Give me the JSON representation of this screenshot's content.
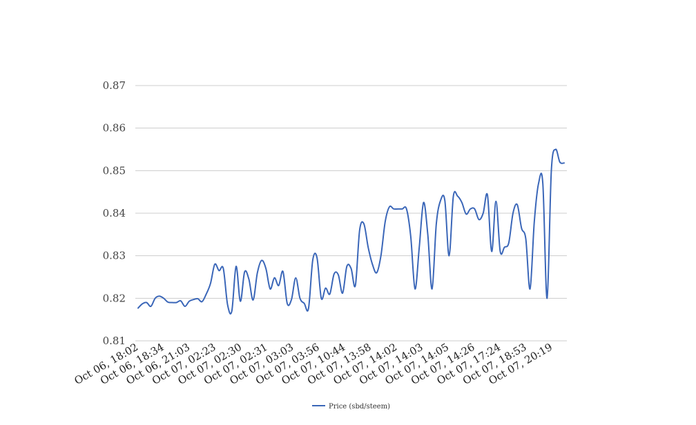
{
  "chart_data": {
    "type": "line",
    "title": "",
    "xlabel": "",
    "ylabel": "",
    "ylim": [
      0.81,
      0.87
    ],
    "yticks": [
      0.81,
      0.82,
      0.83,
      0.84,
      0.85,
      0.86,
      0.87
    ],
    "ytick_labels": [
      "0.81",
      "0.82",
      "0.83",
      "0.84",
      "0.85",
      "0.86",
      "0.87"
    ],
    "x_tick_labels": [
      "Oct 06, 18:02",
      "Oct 06, 18:34",
      "Oct 06, 21:03",
      "Oct 07, 02:23",
      "Oct 07, 02:30",
      "Oct 07, 02:31",
      "Oct 07, 03:03",
      "Oct 07, 03:56",
      "Oct 07, 10:44",
      "Oct 07, 13:58",
      "Oct 07, 14:02",
      "Oct 07, 14:03",
      "Oct 07, 14:05",
      "Oct 07, 14:26",
      "Oct 07, 17:24",
      "Oct 07, 18:53",
      "Oct 07, 20:19"
    ],
    "grid": true,
    "legend_position": "bottom",
    "series": [
      {
        "name": "Price (sbd/steem)",
        "color": "#3a66b8",
        "values": [
          0.8177,
          0.8187,
          0.819,
          0.8181,
          0.82,
          0.8205,
          0.82,
          0.8191,
          0.819,
          0.819,
          0.8194,
          0.8181,
          0.8193,
          0.8197,
          0.8199,
          0.8192,
          0.821,
          0.8235,
          0.828,
          0.8265,
          0.827,
          0.8185,
          0.817,
          0.8275,
          0.8193,
          0.8262,
          0.8245,
          0.8196,
          0.826,
          0.8289,
          0.827,
          0.8222,
          0.8248,
          0.823,
          0.8263,
          0.8188,
          0.8197,
          0.8248,
          0.82,
          0.8188,
          0.8176,
          0.829,
          0.8295,
          0.82,
          0.8224,
          0.821,
          0.8257,
          0.8255,
          0.8212,
          0.8275,
          0.827,
          0.823,
          0.836,
          0.8375,
          0.832,
          0.828,
          0.826,
          0.83,
          0.838,
          0.8415,
          0.841,
          0.841,
          0.841,
          0.841,
          0.8345,
          0.8222,
          0.832,
          0.8425,
          0.835,
          0.8222,
          0.8375,
          0.843,
          0.843,
          0.83,
          0.844,
          0.844,
          0.8425,
          0.8398,
          0.841,
          0.841,
          0.8385,
          0.84,
          0.8443,
          0.831,
          0.8428,
          0.831,
          0.832,
          0.833,
          0.84,
          0.842,
          0.8365,
          0.834,
          0.8222,
          0.838,
          0.847,
          0.847,
          0.82,
          0.85,
          0.855,
          0.852,
          0.8518
        ]
      }
    ]
  }
}
